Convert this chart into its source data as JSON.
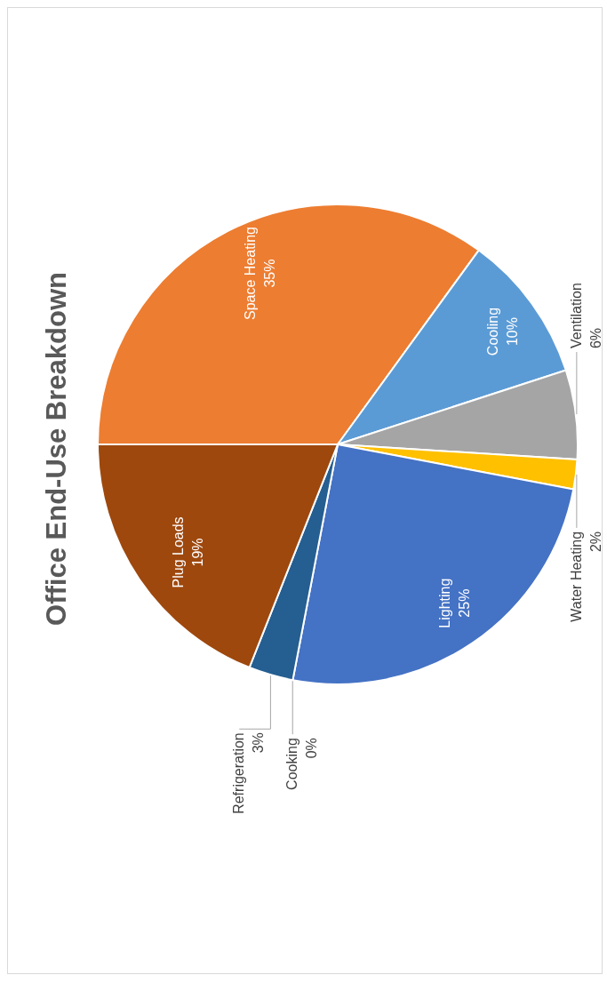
{
  "chart_data": {
    "type": "pie",
    "title": "Office End-Use Breakdown",
    "categories": [
      "Space Heating",
      "Cooling",
      "Ventilation",
      "Water Heating",
      "Lighting",
      "Cooking",
      "Refrigeration",
      "Plug Loads"
    ],
    "values": [
      35,
      10,
      6,
      2,
      25,
      0,
      3,
      19
    ],
    "value_labels": [
      "35%",
      "10%",
      "6%",
      "2%",
      "25%",
      "0%",
      "3%",
      "19%"
    ],
    "colors": [
      "#ed7d31",
      "#5b9bd5",
      "#a5a5a5",
      "#ffc000",
      "#4472c4",
      "#70ad47",
      "#255e91",
      "#9e480e"
    ],
    "data_labels": true
  }
}
